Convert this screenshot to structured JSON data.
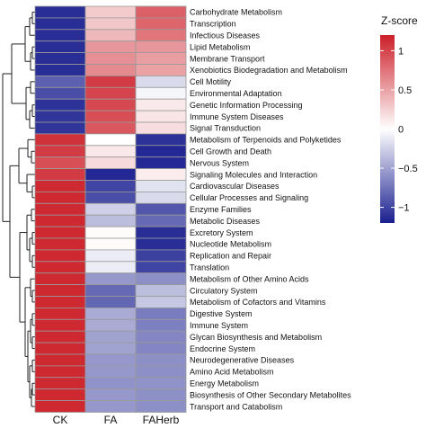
{
  "chart_data": {
    "type": "heatmap",
    "columns": [
      "CK",
      "FA",
      "FAHerb"
    ],
    "rows": [
      {
        "label": "Carbohydrate Metabolism",
        "values": [
          -1.12,
          0.28,
          0.85
        ]
      },
      {
        "label": "Transcription",
        "values": [
          -1.12,
          0.3,
          0.82
        ]
      },
      {
        "label": "Infectious Diseases",
        "values": [
          -1.12,
          0.38,
          0.74
        ]
      },
      {
        "label": "Lipid Metabolism",
        "values": [
          -1.12,
          0.56,
          0.56
        ]
      },
      {
        "label": "Membrane Transport",
        "values": [
          -1.12,
          0.6,
          0.52
        ]
      },
      {
        "label": "Xenobiotics Biodegradation and Metabolism",
        "values": [
          -1.12,
          0.62,
          0.5
        ]
      },
      {
        "label": "Cell Motility",
        "values": [
          -0.85,
          1.05,
          -0.2
        ]
      },
      {
        "label": "Environmental Adaptation",
        "values": [
          -0.95,
          1.0,
          -0.05
        ]
      },
      {
        "label": "Genetic Information Processing",
        "values": [
          -1.1,
          0.98,
          0.12
        ]
      },
      {
        "label": "Immune System Diseases",
        "values": [
          -1.08,
          0.95,
          0.14
        ]
      },
      {
        "label": "Signal Transduction",
        "values": [
          -1.08,
          0.9,
          0.18
        ]
      },
      {
        "label": "Metabolism of Terpenoids and Polyketides",
        "values": [
          1.1,
          0.0,
          -1.1
        ]
      },
      {
        "label": "Cell Growth and Death",
        "values": [
          1.05,
          0.12,
          -1.15
        ]
      },
      {
        "label": "Nervous System",
        "values": [
          0.95,
          0.2,
          -1.15
        ]
      },
      {
        "label": "Signaling Molecules and Interaction",
        "values": [
          1.05,
          -1.15,
          0.1
        ]
      },
      {
        "label": "Cardiovascular Diseases",
        "values": [
          1.15,
          -1.0,
          -0.15
        ]
      },
      {
        "label": "Cellular Processes and Signaling",
        "values": [
          1.15,
          -0.95,
          -0.2
        ]
      },
      {
        "label": "Enzyme Families",
        "values": [
          1.15,
          -0.25,
          -0.9
        ]
      },
      {
        "label": "Metabolic Diseases",
        "values": [
          1.15,
          -0.35,
          -0.8
        ]
      },
      {
        "label": "Excretory System",
        "values": [
          1.15,
          0.02,
          -1.12
        ]
      },
      {
        "label": "Nucleotide Metabolism",
        "values": [
          1.15,
          0.02,
          -1.12
        ]
      },
      {
        "label": "Replication and Repair",
        "values": [
          1.15,
          -0.1,
          -1.02
        ]
      },
      {
        "label": "Translation",
        "values": [
          1.15,
          -0.1,
          -1.0
        ]
      },
      {
        "label": "Metabolism of Other Amino Acids",
        "values": [
          1.15,
          -0.55,
          -0.6
        ]
      },
      {
        "label": "Circulatory System",
        "values": [
          1.15,
          -0.8,
          -0.35
        ]
      },
      {
        "label": "Metabolism of Cofactors and Vitamins",
        "values": [
          1.15,
          -0.82,
          -0.3
        ]
      },
      {
        "label": "Digestive System",
        "values": [
          1.15,
          -0.45,
          -0.7
        ]
      },
      {
        "label": "Immune System",
        "values": [
          1.15,
          -0.45,
          -0.68
        ]
      },
      {
        "label": "Glycan Biosynthesis and Metabolism",
        "values": [
          1.15,
          -0.5,
          -0.65
        ]
      },
      {
        "label": "Endocrine System",
        "values": [
          1.15,
          -0.5,
          -0.65
        ]
      },
      {
        "label": "Neurodegenerative Diseases",
        "values": [
          1.15,
          -0.55,
          -0.6
        ]
      },
      {
        "label": "Amino Acid Metabolism",
        "values": [
          1.15,
          -0.55,
          -0.6
        ]
      },
      {
        "label": "Energy Metabolism",
        "values": [
          1.15,
          -0.58,
          -0.58
        ]
      },
      {
        "label": "Biosynthesis of Other Secondary Metabolites",
        "values": [
          1.15,
          -0.55,
          -0.6
        ]
      },
      {
        "label": "Transport and Catabolism",
        "values": [
          1.15,
          -0.55,
          -0.6
        ]
      }
    ],
    "legend": {
      "title": "Z-score",
      "ticks": [
        "1",
        "0.5",
        "0",
        "−0.5",
        "−1"
      ],
      "tick_values": [
        1,
        0.5,
        0,
        -0.5,
        -1
      ],
      "range": [
        -1.2,
        1.2
      ],
      "colors": {
        "low": "#1a1f8f",
        "mid": "#ffffff",
        "high": "#cc1f28"
      },
      "placement": "right"
    },
    "dendrogram": {
      "shown": true,
      "side": "left"
    }
  }
}
